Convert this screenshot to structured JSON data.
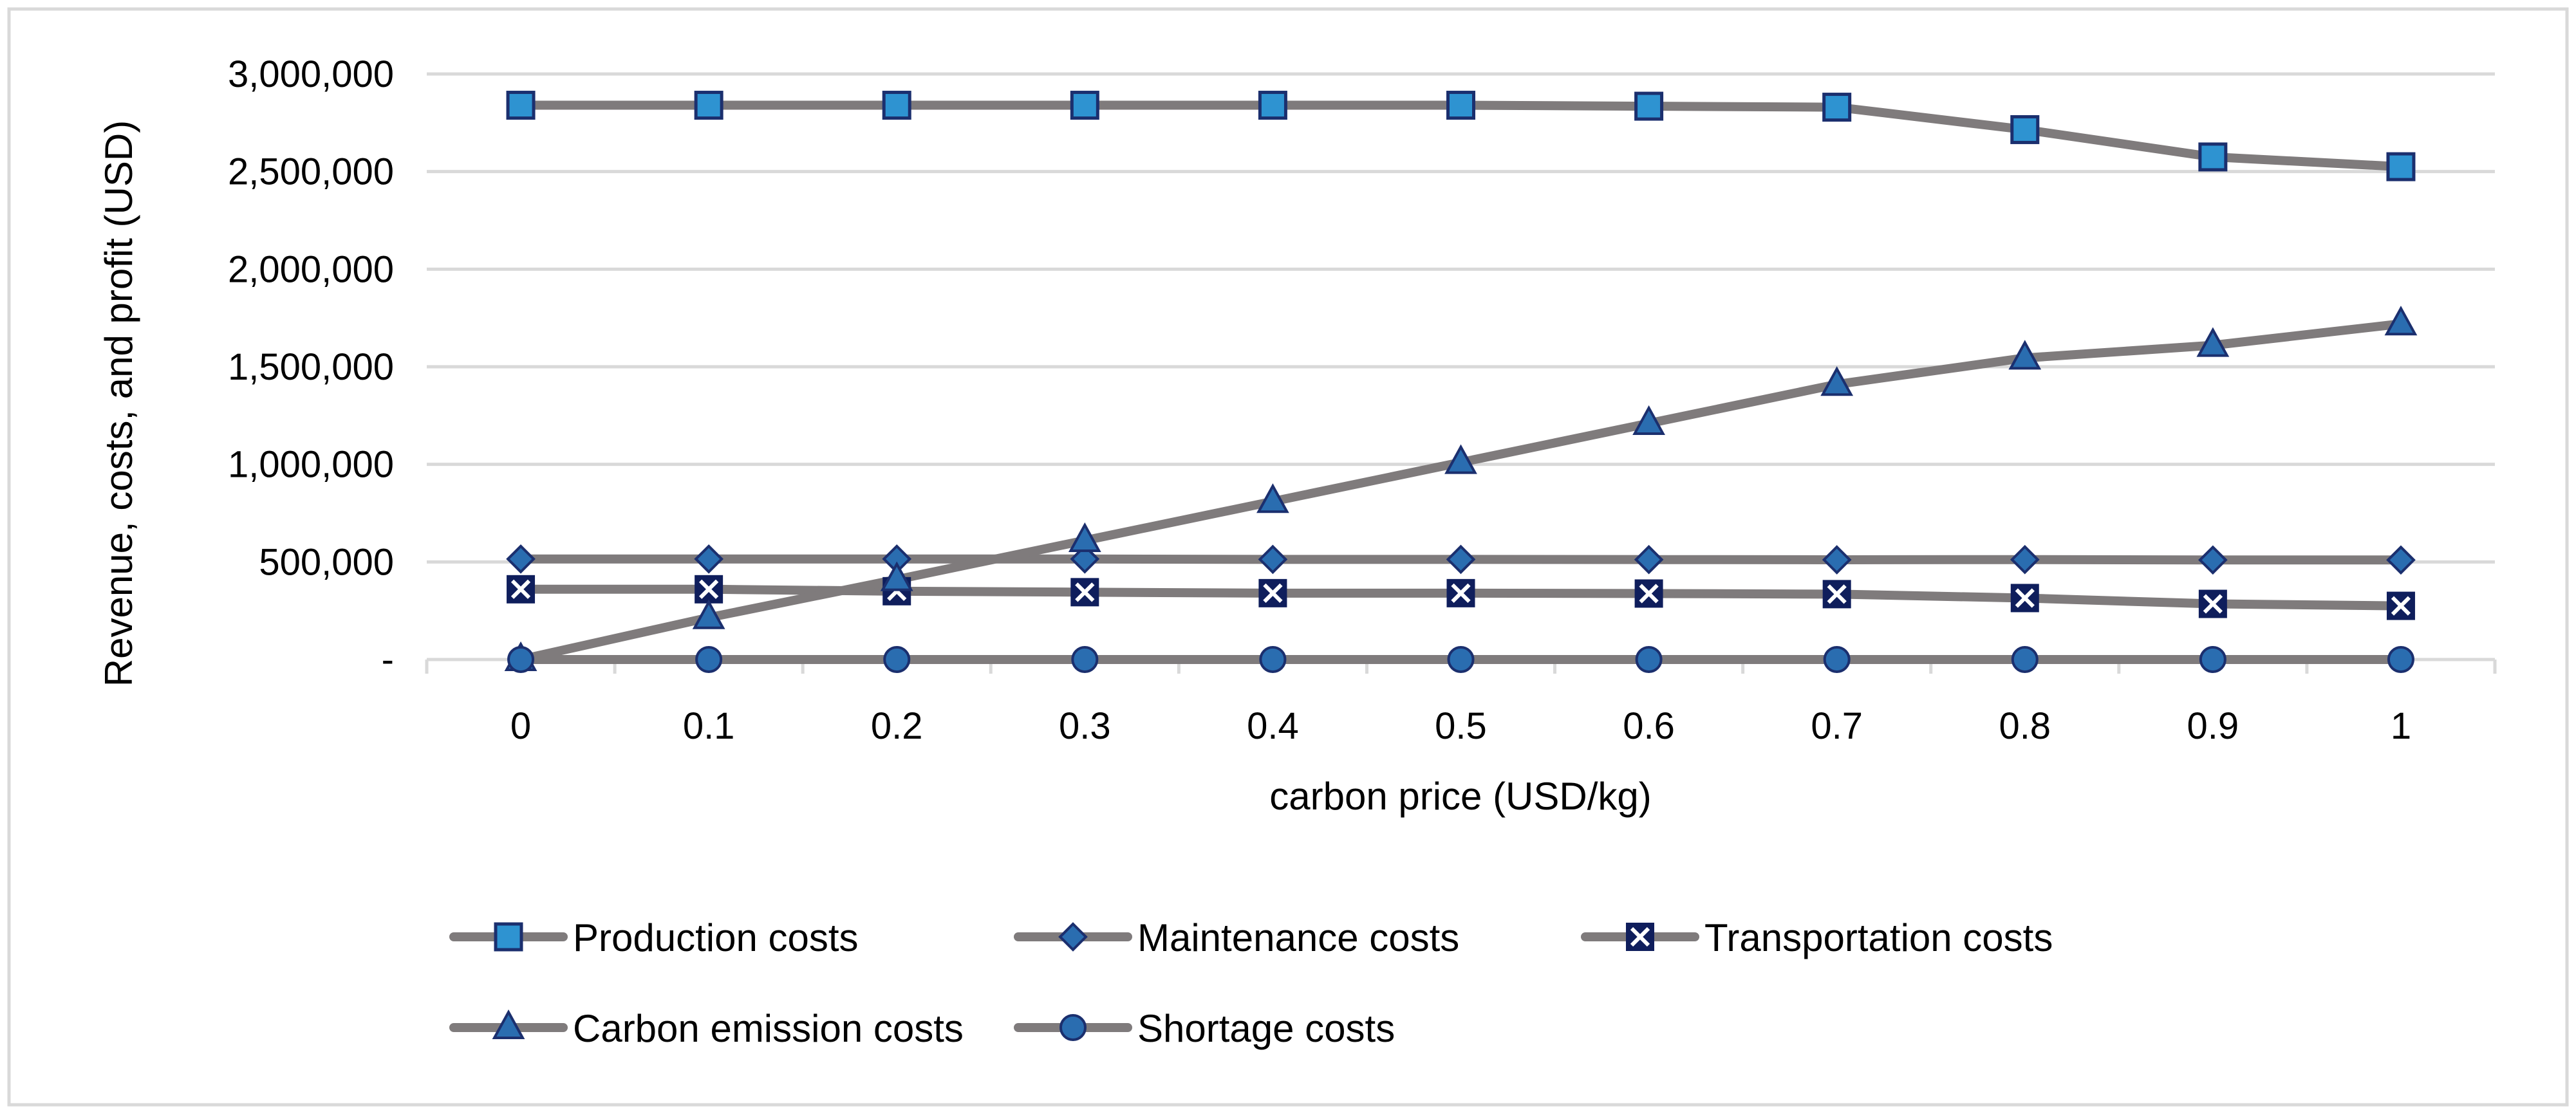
{
  "chart_data": {
    "type": "line",
    "title": "",
    "xlabel": "carbon price (USD/kg)",
    "ylabel": "Revenue, costs, and profit (USD)",
    "categories": [
      "0",
      "0.1",
      "0.2",
      "0.3",
      "0.4",
      "0.5",
      "0.6",
      "0.7",
      "0.8",
      "0.9",
      "1"
    ],
    "ylim": [
      0,
      3000000
    ],
    "yticks": [
      {
        "value": 0,
        "label": "-"
      },
      {
        "value": 500000,
        "label": "500,000"
      },
      {
        "value": 1000000,
        "label": "1,000,000"
      },
      {
        "value": 1500000,
        "label": "1,500,000"
      },
      {
        "value": 2000000,
        "label": "2,000,000"
      },
      {
        "value": 2500000,
        "label": "2,500,000"
      },
      {
        "value": 3000000,
        "label": "3,000,000"
      }
    ],
    "grid": "horizontal",
    "legend_position": "bottom",
    "series": [
      {
        "name": "Production costs",
        "marker": "square",
        "values": [
          2840000,
          2840000,
          2840000,
          2840000,
          2840000,
          2840000,
          2835000,
          2830000,
          2715000,
          2575000,
          2525000
        ]
      },
      {
        "name": "Maintenance costs",
        "marker": "diamond",
        "values": [
          515000,
          515000,
          515000,
          515000,
          513000,
          513000,
          512000,
          511000,
          512000,
          510000,
          510000
        ]
      },
      {
        "name": "Transportation costs",
        "marker": "x-square",
        "values": [
          360000,
          360000,
          350000,
          345000,
          340000,
          340000,
          338000,
          335000,
          315000,
          285000,
          275000
        ]
      },
      {
        "name": "Carbon emission costs",
        "marker": "triangle",
        "values": [
          0,
          215000,
          410000,
          610000,
          810000,
          1010000,
          1210000,
          1410000,
          1545000,
          1610000,
          1720000
        ]
      },
      {
        "name": "Shortage costs",
        "marker": "circle",
        "values": [
          0,
          0,
          0,
          0,
          0,
          0,
          0,
          0,
          0,
          0,
          0
        ]
      }
    ]
  },
  "style": {
    "line_color": "#7f7b7c",
    "marker_fill": "#2e93d1",
    "marker_fill_dark": "#2a6db0",
    "marker_stroke": "#1b2f6e",
    "x_marker_fill": "#0f1e5c",
    "grid_color": "#d9d9d9",
    "axis_color": "#d9d9d9",
    "frame_color": "#d9d9d9"
  }
}
